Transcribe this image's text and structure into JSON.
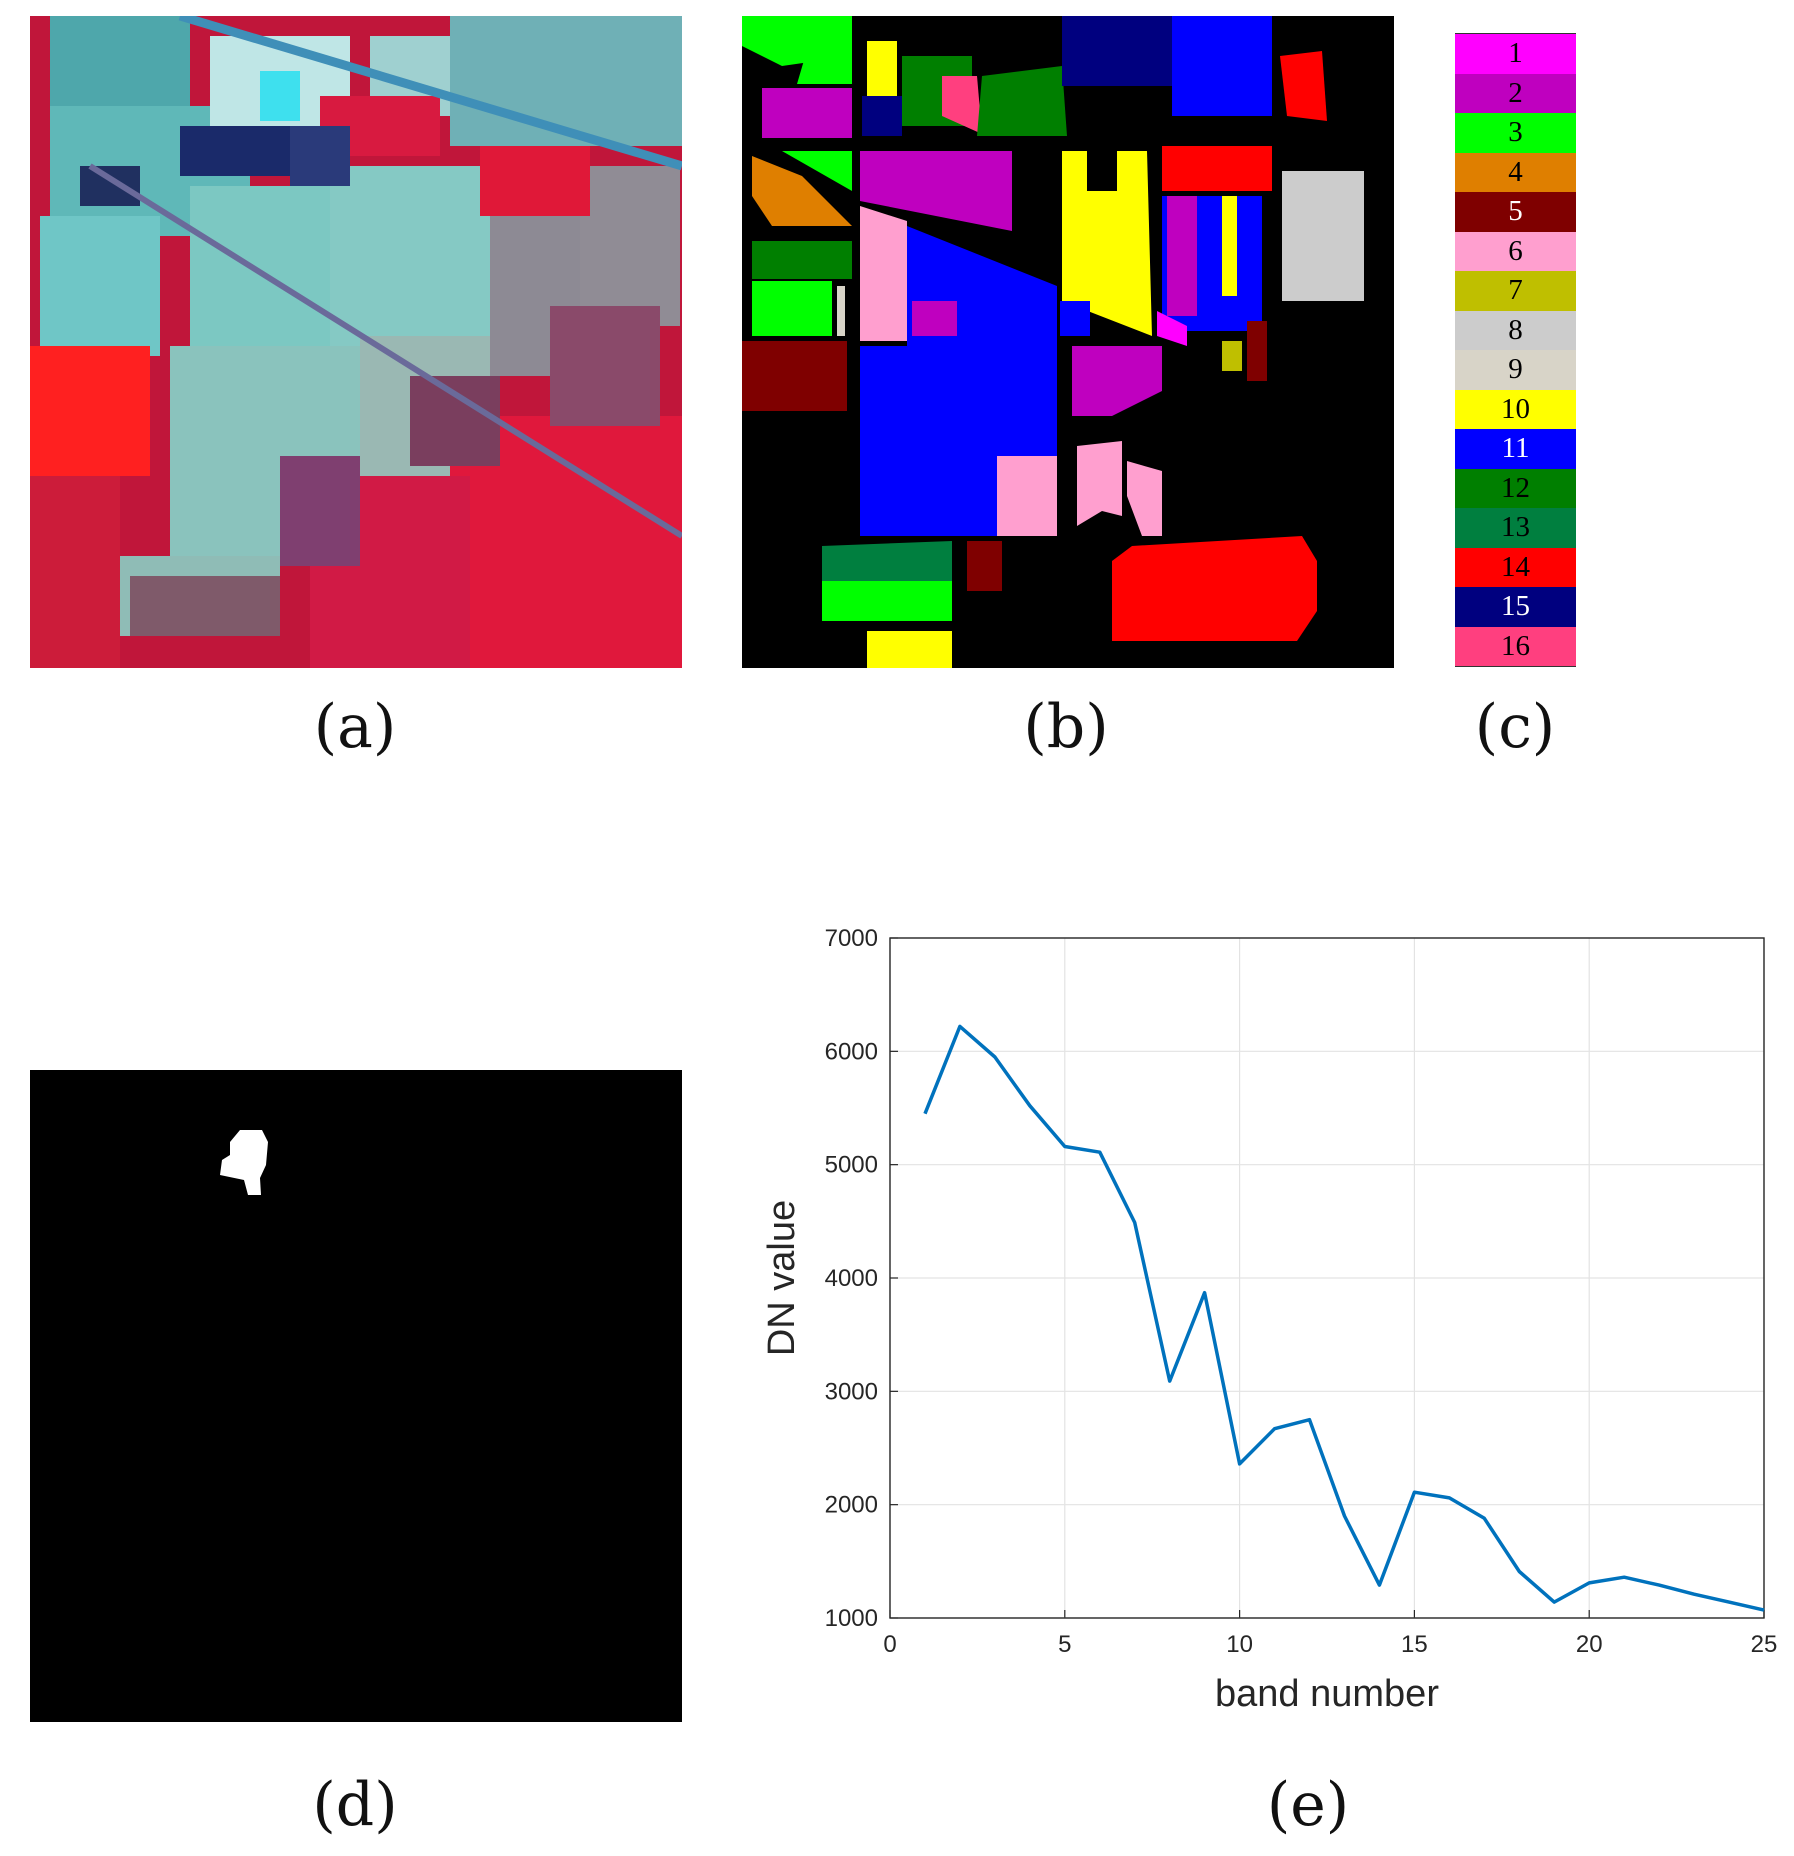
{
  "captions": {
    "a": "(a)",
    "b": "(b)",
    "c": "(c)",
    "d": "(d)",
    "e": "(e)"
  },
  "legend": {
    "items": [
      {
        "label": "1",
        "color": "#ff00ff",
        "text": "#000000"
      },
      {
        "label": "2",
        "color": "#bf00bf",
        "text": "#000000"
      },
      {
        "label": "3",
        "color": "#00ff00",
        "text": "#000000"
      },
      {
        "label": "4",
        "color": "#df7f00",
        "text": "#000000"
      },
      {
        "label": "5",
        "color": "#7f0000",
        "text": "#ffffff"
      },
      {
        "label": "6",
        "color": "#ff9fcf",
        "text": "#000000"
      },
      {
        "label": "7",
        "color": "#bfbf00",
        "text": "#000000"
      },
      {
        "label": "8",
        "color": "#cccccc",
        "text": "#000000"
      },
      {
        "label": "9",
        "color": "#d8d4c8",
        "text": "#000000"
      },
      {
        "label": "10",
        "color": "#ffff00",
        "text": "#000000"
      },
      {
        "label": "11",
        "color": "#0000ff",
        "text": "#ffffff"
      },
      {
        "label": "12",
        "color": "#007f00",
        "text": "#000000"
      },
      {
        "label": "13",
        "color": "#007f3f",
        "text": "#000000"
      },
      {
        "label": "14",
        "color": "#ff0000",
        "text": "#000000"
      },
      {
        "label": "15",
        "color": "#00007f",
        "text": "#ffffff"
      },
      {
        "label": "16",
        "color": "#ff3f7f",
        "text": "#000000"
      }
    ]
  },
  "chart_data": {
    "type": "line",
    "xlabel": "band number",
    "ylabel": "DN value",
    "xlim": [
      0,
      25
    ],
    "ylim": [
      1000,
      7000
    ],
    "xticks": [
      "0",
      "5",
      "10",
      "15",
      "20",
      "25"
    ],
    "yticks": [
      "1000",
      "2000",
      "3000",
      "4000",
      "5000",
      "6000",
      "7000"
    ],
    "grid": true,
    "line_color": "#0072bd",
    "x": [
      1,
      2,
      3,
      4,
      5,
      6,
      7,
      8,
      9,
      10,
      11,
      12,
      13,
      14,
      15,
      16,
      17,
      18,
      19,
      20,
      21,
      22,
      23,
      24,
      25
    ],
    "series": [
      {
        "values": [
          5450,
          6220,
          5950,
          5520,
          5160,
          5110,
          4490,
          3090,
          3870,
          2360,
          2670,
          2750,
          1900,
          1290,
          2110,
          2060,
          1880,
          1410,
          1140,
          1310,
          1360,
          1290,
          1210,
          1140,
          1070
        ]
      }
    ]
  }
}
